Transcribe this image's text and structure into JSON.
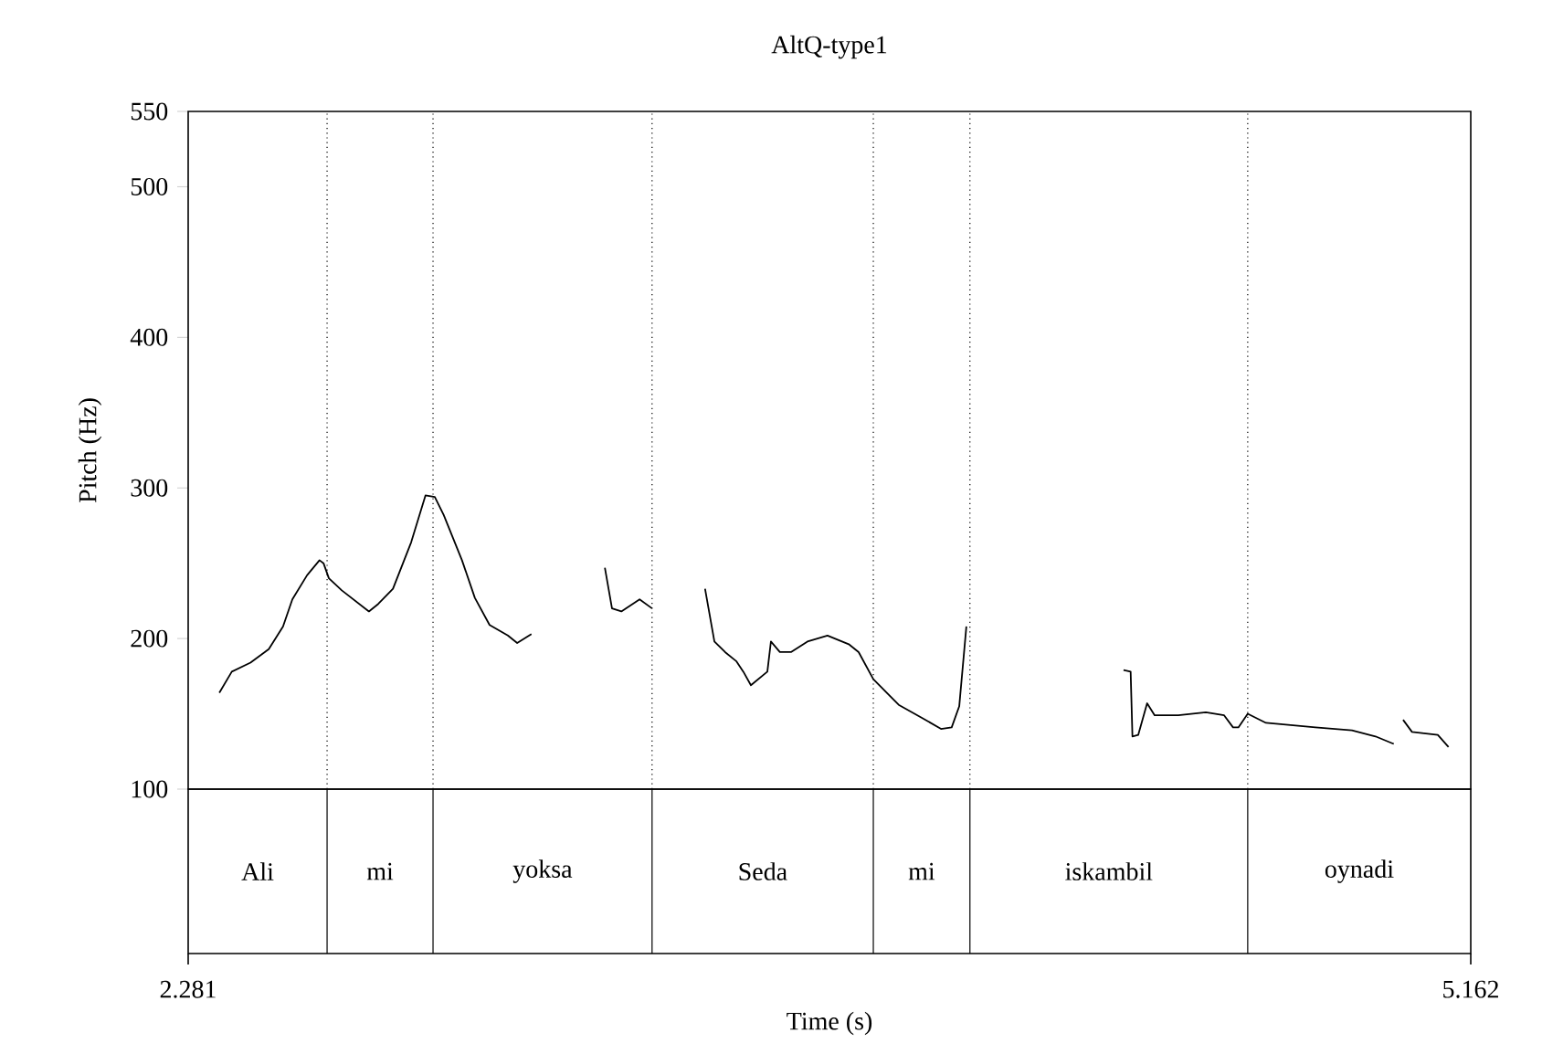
{
  "chart_data": {
    "type": "line",
    "title": "AltQ-type1",
    "xlabel": "Time (s)",
    "ylabel": "Pitch (Hz)",
    "xlim": [
      2.281,
      5.162
    ],
    "xticks": [
      2.281,
      5.162
    ],
    "ylim": [
      100,
      550
    ],
    "yticks": [
      100,
      200,
      300,
      400,
      500,
      550
    ],
    "series": [
      {
        "color": "#000000",
        "x": [
          2.351,
          2.379,
          2.421,
          2.462,
          2.494,
          2.515,
          2.548,
          2.576,
          2.585,
          2.597,
          2.626,
          2.687,
          2.708,
          2.741,
          2.782,
          2.814,
          2.835,
          2.855,
          2.896,
          2.925,
          2.958,
          2.999,
          3.02,
          3.052
        ],
        "values": [
          164,
          178,
          184,
          193,
          208,
          226,
          242,
          252,
          250,
          240,
          232,
          218,
          223,
          233,
          264,
          295,
          294,
          282,
          252,
          227,
          209,
          202,
          197,
          203
        ]
      },
      {
        "color": "#000000",
        "x": [
          3.217,
          3.233,
          3.254,
          3.295,
          3.323
        ],
        "values": [
          247,
          220,
          218,
          226,
          220
        ]
      },
      {
        "color": "#000000",
        "x": [
          3.442,
          3.463,
          3.487,
          3.512,
          3.528,
          3.545,
          3.582,
          3.59,
          3.61,
          3.635,
          3.672,
          3.717,
          3.766,
          3.787,
          3.82,
          3.877,
          3.931,
          3.972,
          3.996,
          4.013,
          4.029
        ],
        "values": [
          233,
          198,
          191,
          185,
          178,
          169,
          178,
          198,
          191,
          191,
          198,
          202,
          196,
          191,
          173,
          156,
          147,
          140,
          141,
          155,
          208
        ]
      },
      {
        "color": "#000000",
        "x": [
          4.382,
          4.398,
          4.402,
          4.415,
          4.435,
          4.452,
          4.505,
          4.567,
          4.608,
          4.628,
          4.64,
          4.661,
          4.702,
          4.813,
          4.895,
          4.948,
          4.989
        ],
        "values": [
          179,
          178,
          135,
          136,
          157,
          149,
          149,
          151,
          149,
          141,
          141,
          150,
          144,
          141,
          139,
          135,
          130
        ]
      },
      {
        "color": "#000000",
        "x": [
          5.01,
          5.03,
          5.088,
          5.112
        ],
        "values": [
          146,
          138,
          136,
          128
        ]
      }
    ],
    "ref_lines": [
      {
        "axis": "x",
        "value": 2.593,
        "line_style": "dotted"
      },
      {
        "axis": "x",
        "value": 2.831,
        "line_style": "dotted"
      },
      {
        "axis": "x",
        "value": 3.323,
        "line_style": "dotted"
      },
      {
        "axis": "x",
        "value": 3.82,
        "line_style": "dotted"
      },
      {
        "axis": "x",
        "value": 4.037,
        "line_style": "dotted"
      },
      {
        "axis": "x",
        "value": 4.661,
        "line_style": "dotted"
      }
    ],
    "annotations": [
      "Ali",
      "mi",
      "yoksa",
      "Seda",
      "mi",
      "iskambil",
      "oynadi"
    ]
  }
}
